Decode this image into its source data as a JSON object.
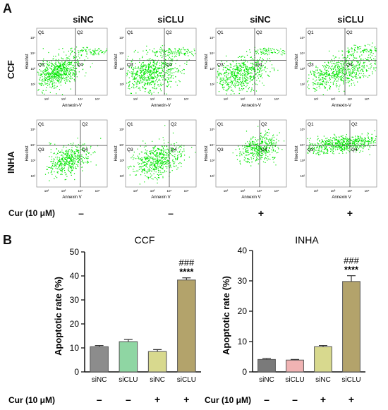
{
  "panel_a": {
    "letter": "A",
    "columns": [
      "siNC",
      "siCLU",
      "siNC",
      "siCLU"
    ],
    "rows": [
      "CCF",
      "INHA"
    ],
    "quadrants": [
      "Q1",
      "Q2",
      "Q3",
      "Q4"
    ],
    "y_axis": "Hoechst",
    "x_axes": [
      [
        "Annexin-V",
        "Annexin-V",
        "Annexin-V",
        "Annexin-V"
      ],
      [
        "Annexin V",
        "Annexin V",
        "Annexin V",
        "Annexin V"
      ]
    ],
    "tick_texts": [
      "10²",
      "10³",
      "10⁴",
      "10⁵"
    ],
    "cur_label": "Cur (10 μM)",
    "cur_signs": [
      "–",
      "–",
      "+",
      "+"
    ],
    "dot_color": "#00e600"
  },
  "panel_b": {
    "letter": "B",
    "cur_label": "Cur (10 μM)",
    "cur_signs": [
      "–",
      "–",
      "+",
      "+"
    ]
  },
  "chart_data": [
    {
      "type": "bar",
      "title": "CCF",
      "ylabel": "Apoptotic rate (%)",
      "categories": [
        "siNC",
        "siCLU",
        "siNC",
        "siCLU"
      ],
      "values": [
        10.5,
        12.6,
        8.5,
        38.3
      ],
      "errors": [
        0.5,
        0.9,
        0.8,
        0.9
      ],
      "colors": [
        "#8c8c8c",
        "#8fd6a3",
        "#d8d98e",
        "#b3a36b"
      ],
      "ylim": [
        0,
        50
      ],
      "yticks": [
        0,
        10,
        20,
        30,
        40,
        50
      ],
      "annotations": [
        {
          "index": 3,
          "lines": [
            "###",
            "****"
          ]
        }
      ]
    },
    {
      "type": "bar",
      "title": "INHA",
      "ylabel": "Apoptotic rate (%)",
      "categories": [
        "siNC",
        "siCLU",
        "siNC",
        "siCLU"
      ],
      "values": [
        4.1,
        3.9,
        8.3,
        29.8
      ],
      "errors": [
        0.3,
        0.2,
        0.4,
        1.9
      ],
      "colors": [
        "#7a7a7a",
        "#f0b3b3",
        "#d8d98e",
        "#b3a36b"
      ],
      "ylim": [
        0,
        40
      ],
      "yticks": [
        0,
        10,
        20,
        30,
        40
      ],
      "annotations": [
        {
          "index": 3,
          "lines": [
            "###",
            "****"
          ]
        }
      ]
    }
  ]
}
